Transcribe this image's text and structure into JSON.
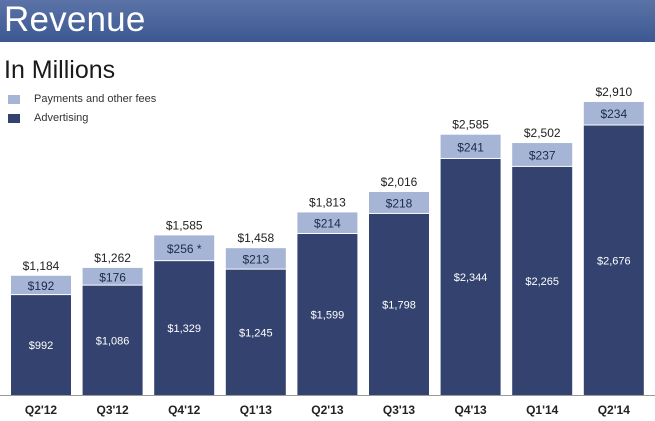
{
  "header": {
    "title": "Revenue"
  },
  "subtitle": "In Millions",
  "colors": {
    "payments": "#a6b4d6",
    "advertising": "#33426e",
    "header": "#4a649c",
    "axis": "#9a9a9a",
    "text": "#222222"
  },
  "chart_data": {
    "type": "bar",
    "stacked": true,
    "title": "Revenue",
    "subtitle": "In Millions",
    "xlabel": "",
    "ylabel": "",
    "legend_position": "top-left",
    "legend": [
      "Payments and other fees",
      "Advertising"
    ],
    "categories": [
      "Q2'12",
      "Q3'12",
      "Q4'12",
      "Q1'13",
      "Q2'13",
      "Q3'13",
      "Q4'13",
      "Q1'14",
      "Q2'14"
    ],
    "series": [
      {
        "name": "Advertising",
        "values": [
          992,
          1086,
          1329,
          1245,
          1599,
          1798,
          2344,
          2265,
          2676
        ],
        "labels": [
          "$992",
          "$1,086",
          "$1,329",
          "$1,245",
          "$1,599",
          "$1,798",
          "$2,344",
          "$2,265",
          "$2,676"
        ]
      },
      {
        "name": "Payments and other fees",
        "values": [
          192,
          176,
          256,
          213,
          214,
          218,
          241,
          237,
          234
        ],
        "labels": [
          "$192",
          "$176",
          "$256 *",
          "$213",
          "$214",
          "$218",
          "$241",
          "$237",
          "$234"
        ]
      }
    ],
    "totals": [
      1184,
      1262,
      1585,
      1458,
      1813,
      2016,
      2585,
      2502,
      2910
    ],
    "total_labels": [
      "$1,184",
      "$1,262",
      "$1,585",
      "$1,458",
      "$1,813",
      "$2,016",
      "$2,585",
      "$2,502",
      "$2,910"
    ],
    "ylim": [
      0,
      3000
    ],
    "grid": false
  }
}
